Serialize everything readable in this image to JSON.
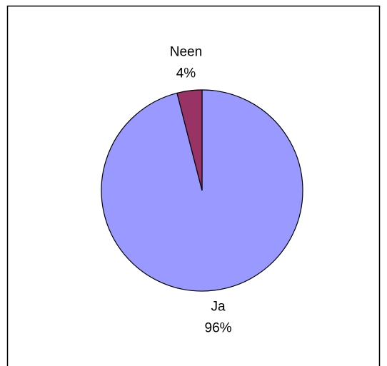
{
  "chart_data": {
    "type": "pie",
    "categories": [
      "Ja",
      "Neen"
    ],
    "values": [
      96,
      4
    ],
    "value_labels": [
      "96%",
      "4%"
    ],
    "colors": [
      "#9999ff",
      "#993366"
    ]
  }
}
